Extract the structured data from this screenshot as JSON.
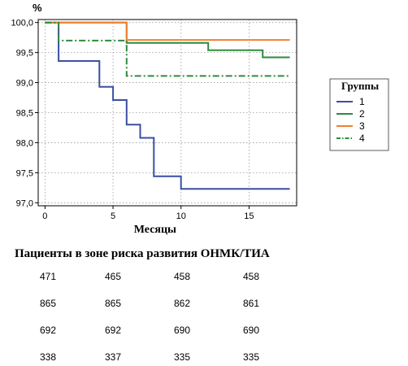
{
  "chart_data": {
    "type": "line",
    "step": true,
    "ylabel_top": "%",
    "xlabel": "Месяцы",
    "xlim": [
      -0.5,
      18.5
    ],
    "ylim": [
      96.95,
      100.05
    ],
    "x_ticks": [
      0,
      5,
      10,
      15
    ],
    "y_ticks": [
      97.0,
      97.5,
      98.0,
      98.5,
      99.0,
      99.5,
      100.0
    ],
    "y_tick_labels": [
      "97,0",
      "97,5",
      "98,0",
      "98,5",
      "99,0",
      "99,5",
      "100,0"
    ],
    "grid": true,
    "legend": {
      "title": "Группы",
      "position": "right"
    },
    "series": [
      {
        "name": "1",
        "color": "#3a4fa3",
        "dash": "solid",
        "x": [
          0,
          1,
          1,
          4,
          4,
          5,
          5,
          6,
          6,
          7,
          7,
          8,
          8,
          10,
          10,
          18
        ],
        "y": [
          100.0,
          100.0,
          99.36,
          99.36,
          98.93,
          98.93,
          98.71,
          98.71,
          98.3,
          98.3,
          98.08,
          98.08,
          97.44,
          97.44,
          97.23,
          97.23
        ]
      },
      {
        "name": "2",
        "color": "#2e8b3d",
        "dash": "solid",
        "x": [
          0,
          6,
          6,
          12,
          12,
          16,
          16,
          18
        ],
        "y": [
          100.0,
          100.0,
          99.66,
          99.66,
          99.54,
          99.54,
          99.42,
          99.42
        ]
      },
      {
        "name": "3",
        "color": "#f08030",
        "dash": "solid",
        "x": [
          0,
          6,
          6,
          18
        ],
        "y": [
          100.0,
          100.0,
          99.71,
          99.71
        ]
      },
      {
        "name": "4",
        "color": "#2e8b3d",
        "dash": "dashdot",
        "x": [
          0,
          1,
          1,
          6,
          6,
          18
        ],
        "y": [
          100.0,
          100.0,
          99.7,
          99.7,
          99.11,
          99.11
        ]
      }
    ]
  },
  "risk_table": {
    "title": "Пациенты в зоне риска развития ОНМК/ТИА",
    "rows": [
      [
        "471",
        "465",
        "458",
        "458"
      ],
      [
        "865",
        "865",
        "862",
        "861"
      ],
      [
        "692",
        "692",
        "690",
        "690"
      ],
      [
        "338",
        "337",
        "335",
        "335"
      ]
    ]
  }
}
